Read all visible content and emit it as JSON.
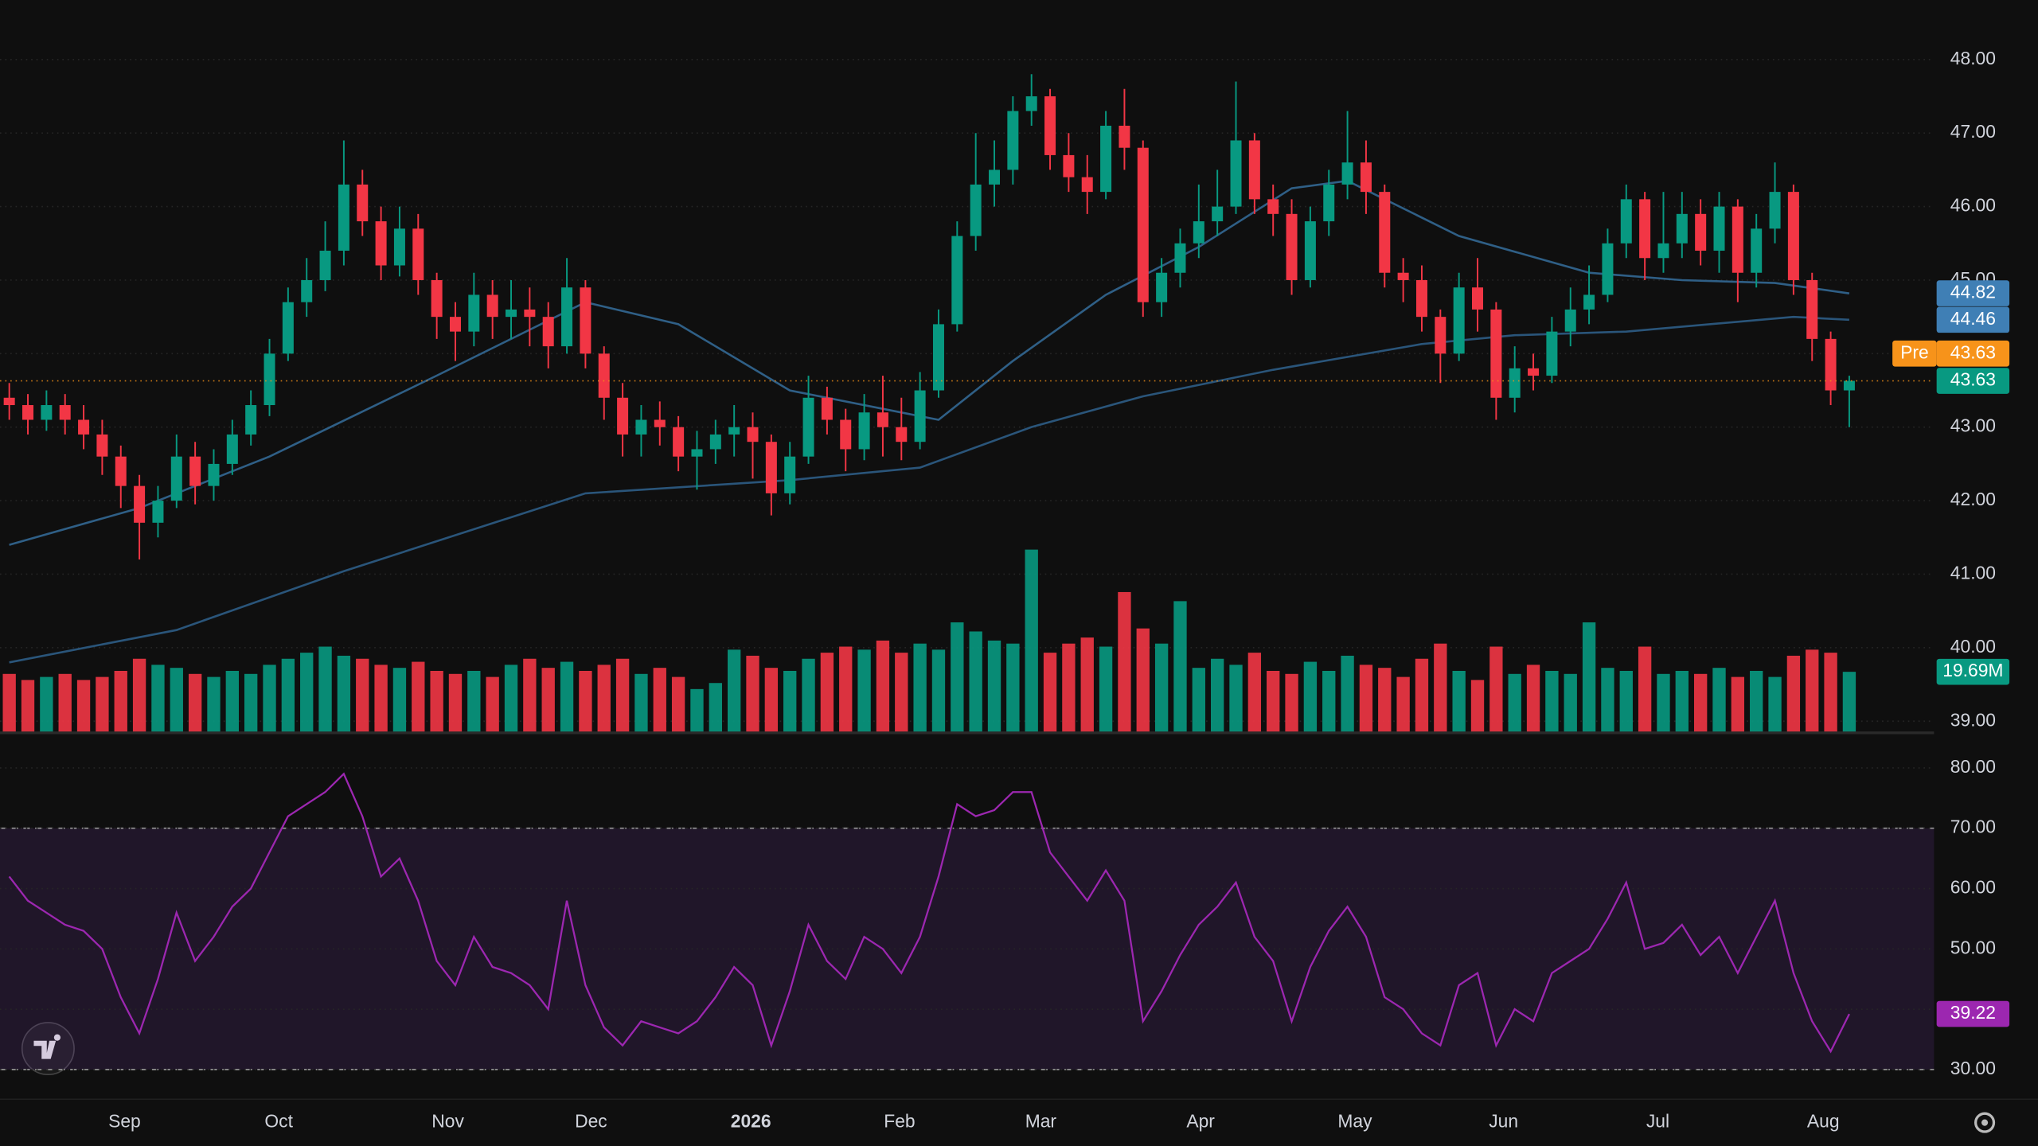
{
  "chart_data": {
    "type": "candlestick",
    "xlim": [
      -0.5,
      103.56
    ],
    "ylim": [
      38.86,
      48.81
    ],
    "rsi_ylim": [
      25.3,
      85.6
    ],
    "grid": true,
    "up_color": "#089981",
    "down_color": "#f23645",
    "xticks": [
      {
        "value": 6.2,
        "label": "Sep"
      },
      {
        "value": 14.5,
        "label": "Oct"
      },
      {
        "value": 23.6,
        "label": "Nov"
      },
      {
        "value": 31.3,
        "label": "Dec"
      },
      {
        "value": 39.9,
        "label": "2026"
      },
      {
        "value": 47.9,
        "label": "Feb"
      },
      {
        "value": 55.5,
        "label": "Mar"
      },
      {
        "value": 64.1,
        "label": "Apr"
      },
      {
        "value": 72.4,
        "label": "May"
      },
      {
        "value": 80.4,
        "label": "Jun"
      },
      {
        "value": 88.7,
        "label": "Jul"
      },
      {
        "value": 97.6,
        "label": "Aug"
      }
    ],
    "yticks": [
      {
        "value": 39,
        "label": "39.00"
      },
      {
        "value": 40,
        "label": "40.00"
      },
      {
        "value": 41,
        "label": "41.00"
      },
      {
        "value": 42,
        "label": "42.00"
      },
      {
        "value": 43,
        "label": "43.00"
      },
      {
        "value": 44,
        "label": "44.00"
      },
      {
        "value": 45,
        "label": "45.00"
      },
      {
        "value": 46,
        "label": "46.00"
      },
      {
        "value": 47,
        "label": "47.00"
      },
      {
        "value": 48,
        "label": "48.00"
      }
    ],
    "rsi_yticks": [
      {
        "value": 30,
        "label": "30.00"
      },
      {
        "value": 40,
        "label": "40.00"
      },
      {
        "value": 50,
        "label": "50.00"
      },
      {
        "value": 60,
        "label": "60.00"
      },
      {
        "value": 70,
        "label": "70.00"
      },
      {
        "value": 80,
        "label": "80.00"
      }
    ],
    "open": [
      43.4,
      43.3,
      43.1,
      43.3,
      43.1,
      42.9,
      42.6,
      42.2,
      41.7,
      42.0,
      42.6,
      42.2,
      42.5,
      42.9,
      43.3,
      44.0,
      44.7,
      45.0,
      45.4,
      46.3,
      45.8,
      45.2,
      45.7,
      45.0,
      44.5,
      44.3,
      44.8,
      44.5,
      44.6,
      44.5,
      44.1,
      44.9,
      44.0,
      43.4,
      42.9,
      43.1,
      43.0,
      42.6,
      42.7,
      42.9,
      43.0,
      42.8,
      42.1,
      42.6,
      43.4,
      43.1,
      42.7,
      43.2,
      43.0,
      42.8,
      43.5,
      44.4,
      45.6,
      46.3,
      46.5,
      47.3,
      47.5,
      46.7,
      46.4,
      46.2,
      47.1,
      46.8,
      44.7,
      45.1,
      45.5,
      45.8,
      46.0,
      46.9,
      46.1,
      45.9,
      45.0,
      45.8,
      46.3,
      46.6,
      46.2,
      45.1,
      45.0,
      44.5,
      44.0,
      44.9,
      44.6,
      43.4,
      43.8,
      43.7,
      44.3,
      44.6,
      44.8,
      45.5,
      46.1,
      45.3,
      45.5,
      45.9,
      45.4,
      46.0,
      45.1,
      45.7,
      46.2,
      45.0,
      44.2,
      43.5
    ],
    "high": [
      43.6,
      43.45,
      43.5,
      43.45,
      43.3,
      43.1,
      42.75,
      42.35,
      42.2,
      42.9,
      42.8,
      42.7,
      43.1,
      43.5,
      44.2,
      44.9,
      45.3,
      45.8,
      46.9,
      46.5,
      46.0,
      46.0,
      45.9,
      45.1,
      44.7,
      45.1,
      45.0,
      45.0,
      44.9,
      44.7,
      45.3,
      45.0,
      44.1,
      43.6,
      43.3,
      43.35,
      43.15,
      42.95,
      43.1,
      43.3,
      43.2,
      42.9,
      42.8,
      43.7,
      43.55,
      43.25,
      43.45,
      43.7,
      43.4,
      43.75,
      44.6,
      45.8,
      47.0,
      46.9,
      47.5,
      47.8,
      47.6,
      47.0,
      46.7,
      47.3,
      47.6,
      46.9,
      45.3,
      45.7,
      46.3,
      46.5,
      47.7,
      47.0,
      46.3,
      46.1,
      46.0,
      46.5,
      47.3,
      46.9,
      46.3,
      45.3,
      45.2,
      44.6,
      45.1,
      45.3,
      44.7,
      44.1,
      44.0,
      44.5,
      44.9,
      45.2,
      45.7,
      46.3,
      46.2,
      46.2,
      46.2,
      46.1,
      46.2,
      46.1,
      45.9,
      46.6,
      46.3,
      45.1,
      44.3,
      43.7
    ],
    "low": [
      43.1,
      42.9,
      42.95,
      42.9,
      42.7,
      42.35,
      41.9,
      41.2,
      41.5,
      41.9,
      41.95,
      42.0,
      42.35,
      42.75,
      43.15,
      43.9,
      44.5,
      44.85,
      45.2,
      45.6,
      45.0,
      45.05,
      44.8,
      44.2,
      43.9,
      44.1,
      44.2,
      44.2,
      44.1,
      43.8,
      44.0,
      43.8,
      43.1,
      42.6,
      42.6,
      42.75,
      42.4,
      42.15,
      42.5,
      42.6,
      42.3,
      41.8,
      41.95,
      42.5,
      42.9,
      42.4,
      42.55,
      42.6,
      42.55,
      42.7,
      43.4,
      44.3,
      45.4,
      46.0,
      46.3,
      47.1,
      46.5,
      46.2,
      45.9,
      46.1,
      46.5,
      44.5,
      44.5,
      44.9,
      45.3,
      45.6,
      45.9,
      45.9,
      45.6,
      44.8,
      44.9,
      45.6,
      46.1,
      45.9,
      44.9,
      44.7,
      44.3,
      43.6,
      43.9,
      44.3,
      43.1,
      43.2,
      43.5,
      43.6,
      44.1,
      44.4,
      44.7,
      45.3,
      45.0,
      45.1,
      45.3,
      45.2,
      45.1,
      44.7,
      44.9,
      45.5,
      44.8,
      43.9,
      43.3,
      43.0
    ],
    "close": [
      43.3,
      43.1,
      43.3,
      43.1,
      42.9,
      42.6,
      42.2,
      41.7,
      42.0,
      42.6,
      42.2,
      42.5,
      42.9,
      43.3,
      44.0,
      44.7,
      45.0,
      45.4,
      46.3,
      45.8,
      45.2,
      45.7,
      45.0,
      44.5,
      44.3,
      44.8,
      44.5,
      44.6,
      44.5,
      44.1,
      44.9,
      44.0,
      43.4,
      42.9,
      43.1,
      43.0,
      42.6,
      42.7,
      42.9,
      43.0,
      42.8,
      42.1,
      42.6,
      43.4,
      43.1,
      42.7,
      43.2,
      43.0,
      42.8,
      43.5,
      44.4,
      45.6,
      46.3,
      46.5,
      47.3,
      47.5,
      46.7,
      46.4,
      46.2,
      47.1,
      46.8,
      44.7,
      45.1,
      45.5,
      45.8,
      46.0,
      46.9,
      46.1,
      45.9,
      45.0,
      45.8,
      46.3,
      46.6,
      46.2,
      45.1,
      45.0,
      44.5,
      44.0,
      44.9,
      44.6,
      43.4,
      43.8,
      43.7,
      44.3,
      44.6,
      44.8,
      45.5,
      46.1,
      45.3,
      45.5,
      45.9,
      45.4,
      46.0,
      45.1,
      45.7,
      46.2,
      45.0,
      44.2,
      43.5,
      43.63
    ],
    "volume": [
      19,
      17,
      18,
      19,
      17,
      18,
      20,
      24,
      22,
      21,
      19,
      18,
      20,
      19,
      22,
      24,
      26,
      28,
      25,
      24,
      22,
      21,
      23,
      20,
      19,
      20,
      18,
      22,
      24,
      21,
      23,
      20,
      22,
      24,
      19,
      21,
      18,
      14,
      16,
      27,
      25,
      21,
      20,
      24,
      26,
      28,
      27,
      30,
      26,
      29,
      27,
      36,
      33,
      30,
      29,
      60,
      26,
      29,
      31,
      28,
      46,
      34,
      29,
      43,
      21,
      24,
      22,
      26,
      20,
      19,
      23,
      20,
      25,
      22,
      21,
      18,
      24,
      29,
      20,
      17,
      28,
      19,
      22,
      20,
      19,
      36,
      21,
      20,
      28,
      19,
      20,
      19,
      21,
      18,
      20,
      18,
      25,
      27,
      26,
      19.69
    ],
    "volume_label": "19.69M",
    "ma": [
      {
        "color": "#2f5f86",
        "x": [
          0,
          7,
          14,
          23,
          31,
          36,
          42,
          50,
          54,
          59,
          64,
          69,
          72,
          78,
          85,
          90,
          95,
          99
        ],
        "values": [
          41.4,
          41.9,
          42.6,
          43.7,
          44.7,
          44.4,
          43.5,
          43.1,
          43.9,
          44.8,
          45.45,
          46.25,
          46.35,
          45.6,
          45.1,
          45.0,
          44.96,
          44.82
        ]
      },
      {
        "color": "#2a557a",
        "x": [
          0,
          9,
          18,
          31,
          42,
          49,
          55,
          61,
          68,
          76,
          81,
          87,
          96,
          99
        ],
        "values": [
          39.8,
          40.24,
          41.04,
          42.1,
          42.28,
          42.45,
          43.0,
          43.42,
          43.78,
          44.13,
          44.25,
          44.3,
          44.5,
          44.46
        ]
      }
    ],
    "price_tags": [
      {
        "value": 44.82,
        "color": "#3f7fb5"
      },
      {
        "value": 44.46,
        "color": "#3f7fb5"
      },
      {
        "label": "Pre",
        "value": 43.63,
        "color": "#f7931a"
      },
      {
        "value": 43.63,
        "color": "#089981"
      }
    ],
    "rsi": [
      62,
      58,
      56,
      54,
      53,
      50,
      42,
      36,
      45,
      56,
      48,
      52,
      57,
      60,
      66,
      72,
      74,
      76,
      79,
      72,
      62,
      65,
      58,
      48,
      44,
      52,
      47,
      46,
      44,
      40,
      58,
      44,
      37,
      34,
      38,
      37,
      36,
      38,
      42,
      47,
      44,
      34,
      43,
      54,
      48,
      45,
      52,
      50,
      46,
      52,
      62,
      74,
      72,
      73,
      76,
      76,
      66,
      62,
      58,
      63,
      58,
      38,
      43,
      49,
      54,
      57,
      61,
      52,
      48,
      38,
      47,
      53,
      57,
      52,
      42,
      40,
      36,
      34,
      44,
      46,
      34,
      40,
      38,
      46,
      48,
      50,
      55,
      61,
      50,
      51,
      54,
      49,
      52,
      46,
      52,
      58,
      46,
      38,
      33,
      39.22
    ],
    "rsi_color": "#9c27b0",
    "rsi_bands": [
      30,
      70
    ]
  }
}
